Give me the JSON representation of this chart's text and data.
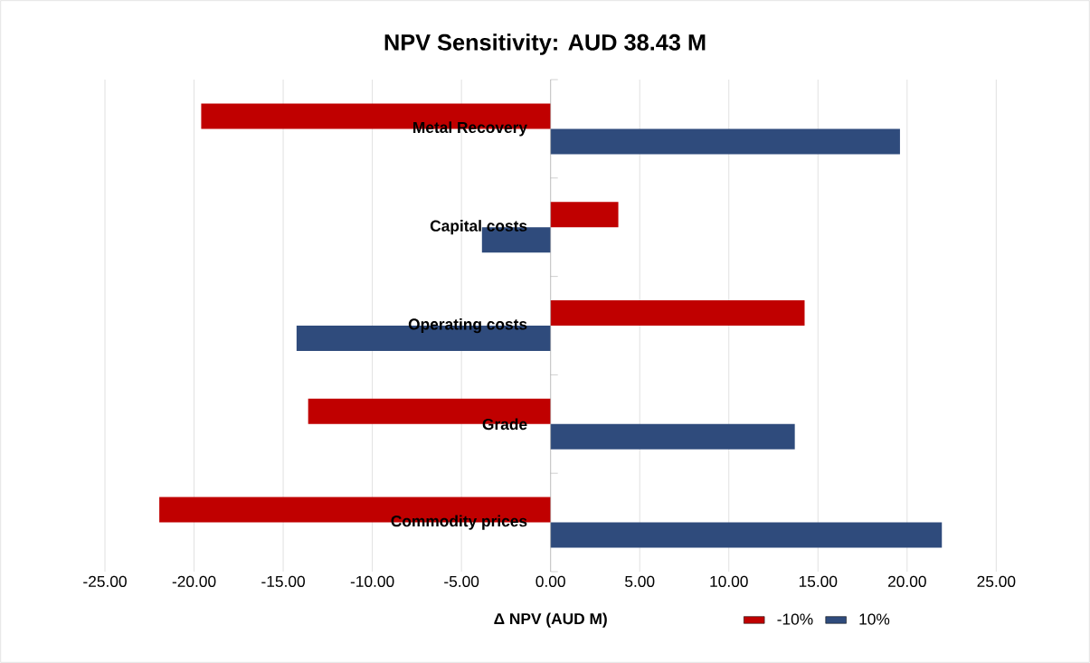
{
  "chart_data": {
    "type": "bar",
    "orientation": "horizontal",
    "title": "NPV Sensitivity: AUD 38.43 M",
    "xlabel": "Δ NPV (AUD M)",
    "categories": [
      "Metal Recovery",
      "Capital costs",
      "Operating costs",
      "Grade",
      "Commodity prices"
    ],
    "series": [
      {
        "name": "-10%",
        "color": "#c00000",
        "values": [
          -19.6,
          3.8,
          14.25,
          -13.6,
          -21.95
        ]
      },
      {
        "name": "10%",
        "color": "#2f4b7c",
        "values": [
          19.6,
          -3.85,
          -14.25,
          13.7,
          21.95
        ]
      }
    ],
    "xlim": [
      -25,
      25
    ],
    "xticks": [
      {
        "value": -25,
        "label": "-25.00"
      },
      {
        "value": -20,
        "label": "-20.00"
      },
      {
        "value": -15,
        "label": "-15.00"
      },
      {
        "value": -10,
        "label": "-10.00"
      },
      {
        "value": -5,
        "label": "-5.00"
      },
      {
        "value": 0,
        "label": "0.00"
      },
      {
        "value": 5,
        "label": "5.00"
      },
      {
        "value": 10,
        "label": "10.00"
      },
      {
        "value": 15,
        "label": "15.00"
      },
      {
        "value": 20,
        "label": "20.00"
      },
      {
        "value": 25,
        "label": "25.00"
      }
    ],
    "grid": "x",
    "legend": "bottom right"
  }
}
